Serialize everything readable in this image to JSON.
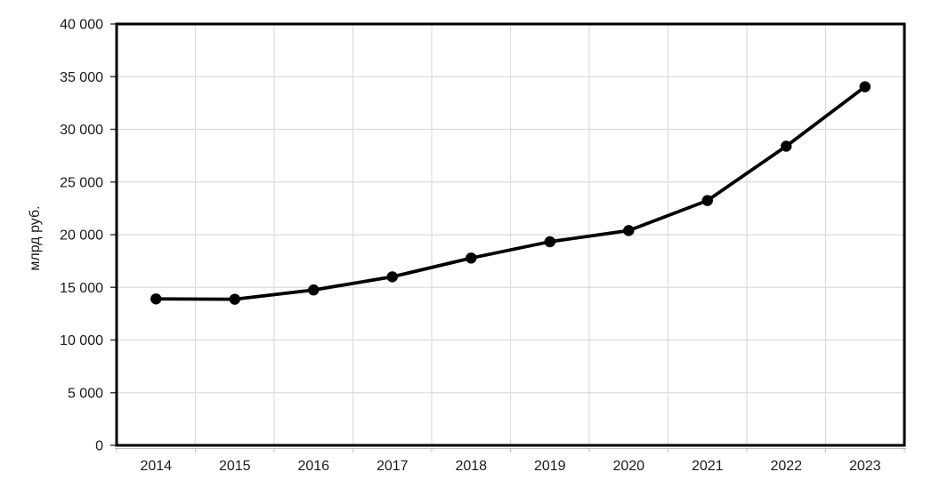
{
  "chart_data": {
    "type": "line",
    "title": "",
    "xlabel": "",
    "ylabel": "млрд руб.",
    "categories": [
      "2014",
      "2015",
      "2016",
      "2017",
      "2018",
      "2019",
      "2020",
      "2021",
      "2022",
      "2023"
    ],
    "series": [
      {
        "name": "values",
        "values": [
          13900,
          13870,
          14750,
          16000,
          17780,
          19330,
          20390,
          23240,
          28400,
          34040
        ]
      }
    ],
    "ylim": [
      0,
      40000
    ],
    "ytick_step": 5000,
    "yticks": [
      {
        "value": 0,
        "label": "0"
      },
      {
        "value": 5000,
        "label": "5 000"
      },
      {
        "value": 10000,
        "label": "10 000"
      },
      {
        "value": 15000,
        "label": "15 000"
      },
      {
        "value": 20000,
        "label": "20 000"
      },
      {
        "value": 25000,
        "label": "25 000"
      },
      {
        "value": 30000,
        "label": "30 000"
      },
      {
        "value": 35000,
        "label": "35 000"
      },
      {
        "value": 40000,
        "label": "40 000"
      }
    ],
    "grid": true,
    "legend": false,
    "marker": "circle"
  },
  "colors": {
    "background": "#ffffff",
    "gridline": "#dcdcdc",
    "plot_border": "#000000",
    "line": "#000000",
    "marker": "#000000",
    "text": "#1a1a1a",
    "axis_line": "#bfbfbf",
    "tick_mark": "#404040"
  }
}
